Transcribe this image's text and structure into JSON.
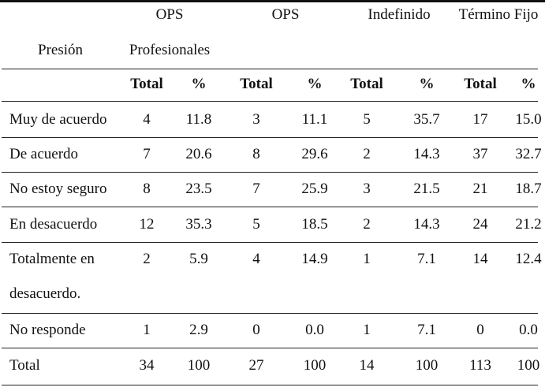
{
  "table": {
    "corner_label": "Presión",
    "groups": [
      {
        "line1": "OPS",
        "line2": "Profesionales"
      },
      {
        "line1": "OPS",
        "line2": ""
      },
      {
        "line1": "Indefinido",
        "line2": ""
      },
      {
        "line1": "Término Fijo",
        "line2": ""
      }
    ],
    "subheaders": [
      "Total",
      "%",
      "Total",
      "%",
      "Total",
      "%",
      "Total",
      "%"
    ],
    "rows": [
      {
        "label": "Muy de acuerdo",
        "label2": "",
        "values": [
          "4",
          "11.8",
          "3",
          "11.1",
          "5",
          "35.7",
          "17",
          "15.0"
        ]
      },
      {
        "label": "De acuerdo",
        "label2": "",
        "values": [
          "7",
          "20.6",
          "8",
          "29.6",
          "2",
          "14.3",
          "37",
          "32.7"
        ]
      },
      {
        "label": "No estoy seguro",
        "label2": "",
        "values": [
          "8",
          "23.5",
          "7",
          "25.9",
          "3",
          "21.5",
          "21",
          "18.7"
        ]
      },
      {
        "label": "En desacuerdo",
        "label2": "",
        "values": [
          "12",
          "35.3",
          "5",
          "18.5",
          "2",
          "14.3",
          "24",
          "21.2"
        ]
      },
      {
        "label": "Totalmente en",
        "label2": "desacuerdo.",
        "values": [
          "2",
          "5.9",
          "4",
          "14.9",
          "1",
          "7.1",
          "14",
          "12.4"
        ]
      },
      {
        "label": "No responde",
        "label2": "",
        "values": [
          "1",
          "2.9",
          "0",
          "0.0",
          "1",
          "7.1",
          "0",
          "0.0"
        ]
      },
      {
        "label": "Total",
        "label2": "",
        "values": [
          "34",
          "100",
          "27",
          "100",
          "14",
          "100",
          "113",
          "100"
        ]
      }
    ]
  }
}
